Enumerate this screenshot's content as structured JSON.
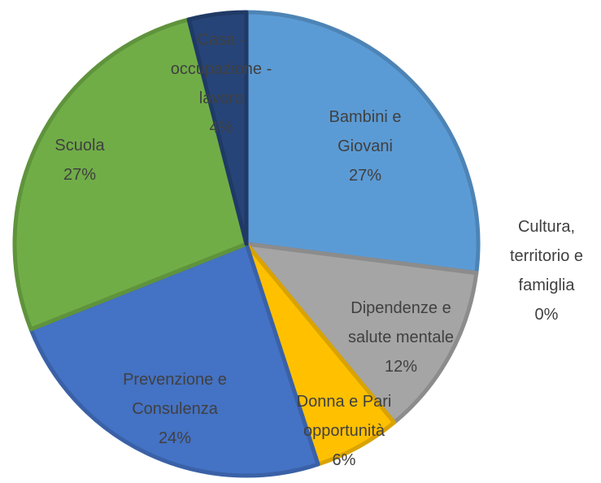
{
  "chart_data": {
    "type": "pie",
    "categories": [
      "Bambini e Giovani",
      "Cultura, territorio e famiglia",
      "Dipendenze e salute mentale",
      "Donna e Pari opportunità",
      "Prevenzione e Consulenza",
      "Scuola",
      "Casa - occupazione - lavoro"
    ],
    "values": [
      27,
      0,
      12,
      6,
      24,
      27,
      4
    ],
    "value_labels": [
      "27%",
      "0%",
      "12%",
      "6%",
      "24%",
      "27%",
      "4%"
    ],
    "colors": [
      "#5b9bd5",
      "#ed7d31",
      "#a5a5a5",
      "#ffc000",
      "#4472c4",
      "#70ad47",
      "#264478"
    ]
  }
}
